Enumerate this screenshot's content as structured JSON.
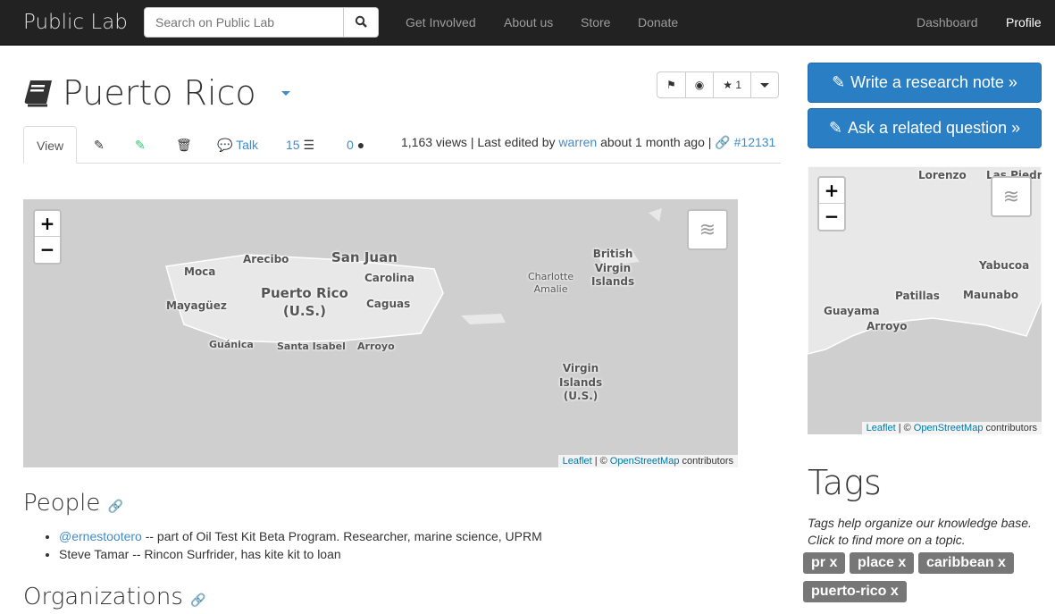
{
  "nav": {
    "brand": "Public Lab",
    "search_placeholder": "Search on Public Lab",
    "links": [
      "Get Involved",
      "About us",
      "Store",
      "Donate"
    ],
    "dashboard": "Dashboard",
    "profile": "Profile"
  },
  "page": {
    "title": "Puerto Rico",
    "star_count": "1"
  },
  "tabs": {
    "view": "View",
    "talk": "Talk",
    "revisions": "15",
    "comments": "0"
  },
  "meta": {
    "prefix": "1,163 views | Last edited by ",
    "author": "warren",
    "suffix": " about 1 month ago | ",
    "node": "#12131"
  },
  "main_map": {
    "labels": [
      "Moca",
      "Arecibo",
      "San Juan",
      "Carolina",
      "Puerto Rico\n(U.S.)",
      "Caguas",
      "Mayagüez",
      "Guánica",
      "Santa Isabel",
      "Arroyo",
      "Charlotte\nAmalie",
      "British\nVirgin\nIslands",
      "Virgin\nIslands\n(U.S.)"
    ],
    "leaflet": "Leaflet",
    "osm": "OpenStreetMap",
    "contributors": "contributors",
    "zoom_in": "+",
    "zoom_out": "−"
  },
  "side_map": {
    "labels": [
      "Lorenzo",
      "Las Piedras",
      "Yabucoa",
      "Patillas",
      "Maunabo",
      "Guayama",
      "Arroyo"
    ],
    "leaflet": "Leaflet",
    "osm": "OpenStreetMap",
    "contributors": "contributors",
    "zoom_in": "+",
    "zoom_out": "−"
  },
  "people": {
    "heading": "People",
    "items": [
      {
        "user": "@ernestootero",
        "text": " -- part of Oil Test Kit Beta Program. Researcher, marine science, UPRM"
      },
      {
        "text": "Steve Tamar -- Rincon Surfrider, has kite kit to loan"
      }
    ]
  },
  "organizations": {
    "heading": "Organizations"
  },
  "sidebar": {
    "write_note": "Write a research note »",
    "ask_question": "Ask a related question »",
    "tags_heading": "Tags",
    "tags_desc": "Tags help organize our knowledge base. Click to find more on a topic.",
    "tags": [
      "pr x",
      "place x",
      "caribbean x",
      "puerto-rico x"
    ]
  }
}
